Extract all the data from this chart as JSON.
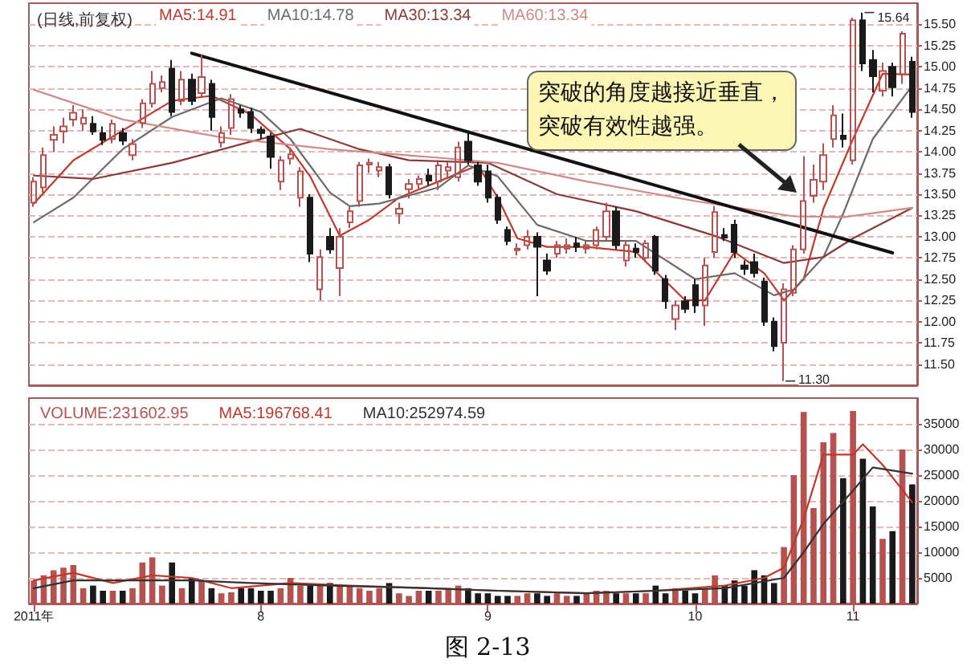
{
  "chart_data": [
    {
      "type": "candlestick",
      "title": "(日线,前复权)",
      "categories": [
        null,
        null,
        null,
        null,
        null,
        null,
        null,
        null,
        null,
        null,
        null,
        null,
        null,
        null,
        null,
        null,
        null,
        null,
        null,
        null,
        null,
        null,
        null,
        null,
        null,
        null,
        null,
        null,
        null,
        null,
        null,
        null,
        null,
        null,
        null,
        null,
        null,
        null,
        null,
        null,
        null,
        null,
        null,
        null,
        null,
        null,
        null,
        null,
        null,
        null,
        null,
        null,
        null,
        null,
        null,
        null,
        null,
        null,
        null,
        null,
        null,
        null,
        null,
        null,
        null,
        null,
        null,
        null,
        null,
        null,
        null,
        null,
        null,
        null,
        null,
        null,
        null,
        null,
        null,
        null,
        null,
        null,
        null,
        null,
        null,
        null,
        null,
        null,
        null,
        null
      ],
      "ohlc": [
        [
          13.4,
          13.7,
          13.35,
          13.65
        ],
        [
          13.58,
          14.05,
          13.52,
          13.96
        ],
        [
          14.14,
          14.3,
          14.0,
          14.2
        ],
        [
          14.24,
          14.4,
          14.1,
          14.3
        ],
        [
          14.38,
          14.55,
          14.3,
          14.46
        ],
        [
          14.33,
          14.5,
          14.25,
          14.4
        ],
        [
          14.33,
          14.42,
          14.2,
          14.24
        ],
        [
          14.22,
          14.3,
          14.08,
          14.14
        ],
        [
          14.15,
          14.38,
          14.1,
          14.33
        ],
        [
          14.22,
          14.28,
          14.08,
          14.13
        ],
        [
          13.96,
          14.15,
          13.9,
          14.09
        ],
        [
          14.34,
          14.62,
          14.28,
          14.57
        ],
        [
          14.57,
          14.95,
          14.52,
          14.8
        ],
        [
          14.75,
          14.9,
          14.7,
          14.82
        ],
        [
          14.98,
          15.08,
          14.42,
          14.47
        ],
        [
          14.6,
          14.95,
          14.55,
          14.85
        ],
        [
          14.85,
          14.92,
          14.55,
          14.6
        ],
        [
          14.69,
          15.14,
          14.65,
          14.88
        ],
        [
          14.8,
          14.85,
          14.25,
          14.41
        ],
        [
          14.11,
          14.3,
          14.05,
          14.22
        ],
        [
          14.28,
          14.68,
          14.2,
          14.62
        ],
        [
          14.5,
          14.55,
          14.4,
          14.46
        ],
        [
          14.47,
          14.52,
          14.22,
          14.28
        ],
        [
          14.26,
          14.3,
          14.15,
          14.22
        ],
        [
          14.18,
          14.22,
          13.8,
          13.94
        ],
        [
          13.65,
          13.95,
          13.55,
          13.9
        ],
        [
          13.92,
          14.05,
          13.85,
          13.97
        ],
        [
          13.46,
          13.82,
          13.35,
          13.77
        ],
        [
          13.46,
          13.5,
          12.7,
          12.8
        ],
        [
          12.38,
          12.85,
          12.25,
          12.76
        ],
        [
          13.0,
          13.1,
          12.8,
          12.85
        ],
        [
          12.63,
          13.1,
          12.3,
          13.0
        ],
        [
          13.17,
          13.35,
          13.1,
          13.3
        ],
        [
          13.42,
          13.88,
          13.35,
          13.84
        ],
        [
          13.85,
          13.92,
          13.75,
          13.87
        ],
        [
          13.78,
          13.88,
          13.7,
          13.82
        ],
        [
          13.82,
          13.86,
          13.45,
          13.5
        ],
        [
          13.27,
          13.4,
          13.15,
          13.33
        ],
        [
          13.56,
          13.68,
          13.45,
          13.62
        ],
        [
          13.62,
          13.72,
          13.55,
          13.68
        ],
        [
          13.72,
          13.8,
          13.6,
          13.66
        ],
        [
          13.65,
          13.88,
          13.55,
          13.84
        ],
        [
          13.78,
          13.88,
          13.7,
          13.82
        ],
        [
          13.7,
          14.12,
          13.65,
          14.05
        ],
        [
          14.12,
          14.25,
          13.85,
          13.9
        ],
        [
          13.84,
          13.88,
          13.6,
          13.65
        ],
        [
          13.77,
          13.85,
          13.4,
          13.46
        ],
        [
          13.46,
          13.5,
          13.15,
          13.2
        ],
        [
          13.08,
          13.12,
          12.9,
          12.95
        ],
        [
          12.84,
          12.92,
          12.78,
          12.86
        ],
        [
          12.9,
          13.08,
          12.85,
          13.0
        ],
        [
          13.0,
          13.05,
          12.3,
          12.88
        ],
        [
          12.72,
          12.8,
          12.55,
          12.6
        ],
        [
          12.8,
          12.95,
          12.75,
          12.9
        ],
        [
          12.86,
          12.98,
          12.8,
          12.9
        ],
        [
          12.92,
          13.0,
          12.82,
          12.88
        ],
        [
          12.86,
          12.95,
          12.8,
          12.9
        ],
        [
          12.9,
          13.12,
          12.85,
          13.08
        ],
        [
          13.0,
          13.4,
          12.95,
          13.3
        ],
        [
          13.3,
          13.35,
          12.85,
          12.9
        ],
        [
          12.72,
          12.95,
          12.65,
          12.9
        ],
        [
          12.86,
          12.92,
          12.75,
          12.82
        ],
        [
          12.75,
          12.96,
          12.7,
          12.92
        ],
        [
          13.0,
          13.02,
          12.55,
          12.6
        ],
        [
          12.5,
          12.55,
          12.15,
          12.24
        ],
        [
          12.03,
          12.25,
          11.9,
          12.19
        ],
        [
          12.24,
          12.3,
          12.1,
          12.15
        ],
        [
          12.43,
          12.5,
          12.1,
          12.19
        ],
        [
          12.19,
          12.75,
          11.95,
          12.66
        ],
        [
          12.82,
          13.36,
          12.75,
          13.29
        ],
        [
          13.02,
          13.1,
          12.95,
          12.99
        ],
        [
          13.14,
          13.2,
          12.75,
          12.82
        ],
        [
          12.66,
          12.72,
          12.55,
          12.62
        ],
        [
          12.7,
          12.8,
          12.52,
          12.57
        ],
        [
          12.47,
          12.52,
          11.95,
          12.0
        ],
        [
          12.0,
          12.05,
          11.65,
          11.71
        ],
        [
          11.75,
          12.45,
          11.3,
          12.38
        ],
        [
          12.34,
          12.9,
          12.3,
          12.85
        ],
        [
          12.85,
          13.95,
          12.8,
          13.42
        ],
        [
          13.48,
          13.85,
          13.4,
          13.67
        ],
        [
          13.65,
          14.1,
          13.55,
          13.96
        ],
        [
          14.15,
          14.55,
          14.05,
          14.43
        ],
        [
          14.19,
          14.45,
          14.05,
          14.15
        ],
        [
          13.9,
          15.58,
          13.85,
          15.55
        ],
        [
          15.55,
          15.64,
          14.95,
          15.04
        ],
        [
          15.08,
          15.2,
          14.7,
          14.89
        ],
        [
          14.72,
          15.05,
          14.65,
          14.95
        ],
        [
          15.0,
          15.05,
          14.65,
          14.76
        ],
        [
          14.91,
          15.42,
          14.8,
          15.39
        ],
        [
          15.06,
          15.12,
          14.4,
          14.47
        ]
      ],
      "colors": [
        "#b5514f",
        "#b5514f",
        "#b5514f",
        "#b5514f",
        "#b5514f",
        "#b5514f",
        "#1a1a1a",
        "#1a1a1a",
        "#b5514f",
        "#1a1a1a",
        "#b5514f",
        "#b5514f",
        "#b5514f",
        "#b5514f",
        "#1a1a1a",
        "#b5514f",
        "#1a1a1a",
        "#b5514f",
        "#1a1a1a",
        "#b5514f",
        "#b5514f",
        "#1a1a1a",
        "#1a1a1a",
        "#1a1a1a",
        "#1a1a1a",
        "#b5514f",
        "#b5514f",
        "#b5514f",
        "#1a1a1a",
        "#b5514f",
        "#1a1a1a",
        "#b5514f",
        "#b5514f",
        "#b5514f",
        "#b5514f",
        "#b5514f",
        "#1a1a1a",
        "#b5514f",
        "#b5514f",
        "#b5514f",
        "#1a1a1a",
        "#b5514f",
        "#b5514f",
        "#b5514f",
        "#1a1a1a",
        "#1a1a1a",
        "#1a1a1a",
        "#1a1a1a",
        "#1a1a1a",
        "#b5514f",
        "#b5514f",
        "#1a1a1a",
        "#1a1a1a",
        "#b5514f",
        "#b5514f",
        "#1a1a1a",
        "#b5514f",
        "#b5514f",
        "#b5514f",
        "#1a1a1a",
        "#b5514f",
        "#1a1a1a",
        "#b5514f",
        "#1a1a1a",
        "#1a1a1a",
        "#b5514f",
        "#1a1a1a",
        "#1a1a1a",
        "#b5514f",
        "#b5514f",
        "#1a1a1a",
        "#1a1a1a",
        "#1a1a1a",
        "#1a1a1a",
        "#1a1a1a",
        "#1a1a1a",
        "#b5514f",
        "#b5514f",
        "#b5514f",
        "#b5514f",
        "#b5514f",
        "#b5514f",
        "#1a1a1a",
        "#b5514f",
        "#1a1a1a",
        "#1a1a1a",
        "#b5514f",
        "#1a1a1a",
        "#b5514f",
        "#1a1a1a"
      ],
      "series": [
        {
          "name": "MA5:14.91",
          "type": "line",
          "color": "#c0392b",
          "values": [
            13.39,
            null,
            null,
            null,
            13.9,
            null,
            null,
            null,
            null,
            14.25,
            null,
            null,
            null,
            null,
            14.6,
            null,
            null,
            null,
            14.66,
            null,
            null,
            null,
            14.44,
            null,
            null,
            null,
            14.03,
            null,
            13.71,
            null,
            null,
            13.01,
            null,
            null,
            13.2,
            null,
            null,
            13.46,
            null,
            null,
            null,
            13.65,
            null,
            null,
            null,
            13.84,
            null,
            13.46,
            null,
            12.98,
            null,
            null,
            12.88,
            null,
            null,
            null,
            12.88,
            null,
            null,
            null,
            null,
            12.82,
            null,
            null,
            null,
            null,
            12.25,
            null,
            12.25,
            null,
            null,
            12.82,
            null,
            null,
            12.57,
            null,
            12.25,
            null,
            12.5,
            null,
            13.33,
            null,
            null,
            14.15,
            null,
            null,
            14.92,
            null,
            null,
            14.91
          ]
        },
        {
          "name": "MA10:14.78",
          "type": "line",
          "color": "#6b6b6b",
          "values": [
            13.17,
            null,
            null,
            null,
            13.46,
            null,
            null,
            null,
            null,
            14.03,
            null,
            null,
            null,
            null,
            14.41,
            null,
            null,
            null,
            null,
            14.63,
            null,
            null,
            null,
            14.47,
            null,
            null,
            14.15,
            null,
            null,
            null,
            13.52,
            null,
            13.36,
            null,
            null,
            13.39,
            null,
            null,
            null,
            null,
            null,
            13.58,
            null,
            null,
            13.84,
            null,
            null,
            13.71,
            null,
            null,
            null,
            13.14,
            null,
            null,
            null,
            null,
            12.95,
            null,
            null,
            null,
            null,
            12.95,
            null,
            null,
            null,
            null,
            null,
            12.5,
            null,
            null,
            null,
            12.57,
            null,
            null,
            null,
            12.31,
            null,
            12.38,
            null,
            null,
            12.76,
            null,
            13.27,
            null,
            null,
            14.15,
            null,
            null,
            null,
            14.78
          ]
        },
        {
          "name": "MA30:13.34",
          "type": "line",
          "color": "#8b3a3a",
          "values": [
            13.72,
            null,
            null,
            null,
            null,
            null,
            13.68,
            null,
            null,
            null,
            null,
            null,
            null,
            null,
            13.87,
            null,
            null,
            null,
            null,
            null,
            null,
            null,
            14.12,
            null,
            null,
            null,
            null,
            14.27,
            null,
            null,
            null,
            null,
            null,
            14.03,
            null,
            null,
            null,
            null,
            13.9,
            null,
            null,
            null,
            null,
            null,
            null,
            null,
            13.87,
            null,
            null,
            null,
            null,
            null,
            null,
            13.5,
            null,
            null,
            null,
            null,
            null,
            null,
            null,
            13.3,
            null,
            null,
            null,
            null,
            null,
            null,
            null,
            13.01,
            null,
            null,
            null,
            null,
            null,
            null,
            12.69,
            null,
            null,
            null,
            12.76,
            null,
            null,
            12.98,
            null,
            null,
            null,
            null,
            null,
            13.34
          ]
        },
        {
          "name": "MA60:13.34",
          "type": "line",
          "color": "#d08a8a",
          "values": [
            14.73,
            null,
            null,
            null,
            null,
            null,
            null,
            null,
            null,
            14.38,
            null,
            null,
            null,
            null,
            null,
            null,
            null,
            null,
            null,
            14.17,
            null,
            null,
            null,
            null,
            null,
            null,
            null,
            null,
            null,
            null,
            14.03,
            null,
            null,
            null,
            null,
            null,
            null,
            null,
            null,
            null,
            null,
            13.93,
            null,
            null,
            null,
            null,
            null,
            13.87,
            null,
            null,
            null,
            null,
            null,
            null,
            null,
            null,
            13.65,
            null,
            null,
            null,
            null,
            null,
            null,
            null,
            null,
            null,
            null,
            13.42,
            null,
            null,
            null,
            null,
            null,
            null,
            null,
            null,
            null,
            13.24,
            null,
            null,
            null,
            null,
            13.23,
            null,
            null,
            null,
            null,
            null,
            null,
            13.34
          ]
        },
        {
          "type": "line",
          "color": "#111111",
          "values": [
            null,
            null,
            null,
            null,
            null,
            null,
            null,
            null,
            null,
            null,
            null,
            null,
            null,
            null,
            null,
            null,
            15.16,
            null,
            null,
            null,
            null,
            null,
            null,
            null,
            null,
            null,
            null,
            null,
            null,
            null,
            null,
            null,
            null,
            null,
            null,
            null,
            null,
            null,
            null,
            null,
            null,
            null,
            null,
            null,
            null,
            null,
            null,
            null,
            null,
            null,
            null,
            null,
            null,
            null,
            null,
            null,
            null,
            null,
            null,
            null,
            null,
            null,
            null,
            null,
            null,
            null,
            null,
            null,
            null,
            null,
            null,
            null,
            null,
            null,
            null,
            null,
            null,
            null,
            null,
            null,
            null,
            null,
            null,
            null,
            null,
            null,
            null,
            12.81,
            null,
            null
          ]
        }
      ],
      "ylim": [
        11.25,
        15.75
      ],
      "yticks": [
        {
          "value": 11.5,
          "label": "11.50"
        },
        {
          "value": 11.75,
          "label": "11.75"
        },
        {
          "value": 12,
          "label": "12.00"
        },
        {
          "value": 12.25,
          "label": "12.25"
        },
        {
          "value": 12.5,
          "label": "12.50"
        },
        {
          "value": 12.75,
          "label": "12.75"
        },
        {
          "value": 13,
          "label": "13.00"
        },
        {
          "value": 13.25,
          "label": "13.25"
        },
        {
          "value": 13.5,
          "label": "13.50"
        },
        {
          "value": 13.75,
          "label": "13.75"
        },
        {
          "value": 14,
          "label": "14.00"
        },
        {
          "value": 14.25,
          "label": "14.25"
        },
        {
          "value": 14.5,
          "label": "14.50"
        },
        {
          "value": 14.75,
          "label": "14.75"
        },
        {
          "value": 15,
          "label": "15.00"
        },
        {
          "value": 15.25,
          "label": "15.25"
        },
        {
          "value": 15.5,
          "label": "15.50"
        }
      ],
      "grid": "y",
      "legend": "top left",
      "tick_labels": "y",
      "marker": "none",
      "annotations": [
        "突破的角度越接近垂直，突破有效性越强。",
        "15.64",
        "11.30"
      ]
    },
    {
      "type": "bar",
      "categories": [
        "2011年",
        null,
        null,
        null,
        null,
        null,
        null,
        null,
        null,
        null,
        null,
        null,
        null,
        null,
        null,
        null,
        null,
        null,
        null,
        null,
        null,
        null,
        null,
        "8",
        null,
        null,
        null,
        null,
        null,
        null,
        null,
        null,
        null,
        null,
        null,
        null,
        null,
        null,
        null,
        null,
        null,
        null,
        null,
        null,
        null,
        null,
        "9",
        null,
        null,
        null,
        null,
        null,
        null,
        null,
        null,
        null,
        null,
        null,
        null,
        null,
        null,
        null,
        null,
        null,
        null,
        null,
        null,
        "10",
        null,
        null,
        null,
        null,
        null,
        null,
        null,
        null,
        null,
        null,
        null,
        null,
        null,
        null,
        null,
        "11",
        null,
        null,
        null,
        null,
        null,
        null
      ],
      "series": [
        {
          "name": "VOLUME:231602.95",
          "type": "bar",
          "color": "#b5514f",
          "colors": [
            "#b5514f",
            "#b5514f",
            "#b5514f",
            "#b5514f",
            "#b5514f",
            "#b5514f",
            "#1a1a1a",
            "#1a1a1a",
            "#b5514f",
            "#1a1a1a",
            "#b5514f",
            "#b5514f",
            "#b5514f",
            "#b5514f",
            "#1a1a1a",
            "#b5514f",
            "#1a1a1a",
            "#b5514f",
            "#1a1a1a",
            "#b5514f",
            "#b5514f",
            "#1a1a1a",
            "#1a1a1a",
            "#1a1a1a",
            "#1a1a1a",
            "#b5514f",
            "#b5514f",
            "#b5514f",
            "#1a1a1a",
            "#b5514f",
            "#1a1a1a",
            "#b5514f",
            "#b5514f",
            "#b5514f",
            "#b5514f",
            "#b5514f",
            "#1a1a1a",
            "#b5514f",
            "#b5514f",
            "#b5514f",
            "#1a1a1a",
            "#b5514f",
            "#b5514f",
            "#b5514f",
            "#1a1a1a",
            "#1a1a1a",
            "#1a1a1a",
            "#1a1a1a",
            "#1a1a1a",
            "#b5514f",
            "#b5514f",
            "#1a1a1a",
            "#1a1a1a",
            "#b5514f",
            "#b5514f",
            "#1a1a1a",
            "#b5514f",
            "#b5514f",
            "#b5514f",
            "#1a1a1a",
            "#b5514f",
            "#1a1a1a",
            "#b5514f",
            "#1a1a1a",
            "#1a1a1a",
            "#b5514f",
            "#1a1a1a",
            "#1a1a1a",
            "#b5514f",
            "#b5514f",
            "#1a1a1a",
            "#1a1a1a",
            "#1a1a1a",
            "#1a1a1a",
            "#1a1a1a",
            "#1a1a1a",
            "#b5514f",
            "#b5514f",
            "#b5514f",
            "#b5514f",
            "#b5514f",
            "#b5514f",
            "#1a1a1a",
            "#b5514f",
            "#1a1a1a",
            "#1a1a1a",
            "#b5514f",
            "#1a1a1a",
            "#b5514f",
            "#1a1a1a"
          ],
          "values": [
            4500,
            5500,
            6500,
            7000,
            7500,
            3000,
            3500,
            2500,
            2500,
            2500,
            3000,
            8000,
            9000,
            3500,
            8000,
            3000,
            5000,
            4500,
            3000,
            2000,
            2200,
            3000,
            3000,
            2500,
            2500,
            3000,
            5000,
            3500,
            3500,
            3500,
            4000,
            3500,
            3500,
            3000,
            2500,
            3000,
            4000,
            2000,
            1500,
            2500,
            2500,
            2500,
            3000,
            3500,
            3000,
            2000,
            2000,
            1500,
            1500,
            1500,
            2000,
            2000,
            1500,
            2000,
            1500,
            1500,
            2000,
            2500,
            2500,
            2000,
            2000,
            2000,
            2000,
            3500,
            2000,
            3000,
            2500,
            2000,
            3000,
            5500,
            3500,
            4500,
            3500,
            6500,
            5500,
            4000,
            11000,
            25000,
            37300,
            18600,
            31400,
            33200,
            24400,
            37500,
            28200,
            18900,
            12600,
            14100,
            30000,
            23200
          ]
        },
        {
          "name": "MA5:196768.41",
          "type": "line",
          "color": "#c0392b",
          "values": [
            4500,
            null,
            null,
            null,
            6000,
            null,
            null,
            null,
            4000,
            null,
            null,
            null,
            5500,
            null,
            null,
            null,
            5000,
            null,
            null,
            null,
            3000,
            null,
            null,
            null,
            null,
            null,
            4000,
            null,
            null,
            null,
            null,
            null,
            3500,
            null,
            null,
            null,
            null,
            null,
            null,
            null,
            3000,
            null,
            null,
            null,
            null,
            null,
            null,
            2500,
            null,
            null,
            null,
            null,
            null,
            null,
            null,
            null,
            2000,
            null,
            null,
            null,
            null,
            null,
            null,
            2500,
            null,
            null,
            null,
            null,
            null,
            null,
            3500,
            null,
            null,
            null,
            5000,
            null,
            7000,
            null,
            16500,
            null,
            29000,
            null,
            null,
            29000,
            31000,
            null,
            27000,
            null,
            null,
            19700
          ]
        },
        {
          "name": "MA10:252974.59",
          "type": "line",
          "color": "#333333",
          "values": [
            3000,
            null,
            null,
            null,
            4500,
            null,
            null,
            null,
            null,
            null,
            4500,
            null,
            null,
            null,
            null,
            null,
            4500,
            null,
            null,
            null,
            null,
            null,
            4000,
            null,
            null,
            null,
            null,
            null,
            null,
            null,
            3500,
            null,
            null,
            null,
            null,
            null,
            null,
            null,
            null,
            null,
            3000,
            null,
            null,
            null,
            null,
            null,
            null,
            2500,
            null,
            null,
            null,
            null,
            null,
            null,
            null,
            null,
            2000,
            null,
            null,
            null,
            null,
            null,
            null,
            2500,
            null,
            null,
            null,
            null,
            null,
            null,
            3000,
            null,
            null,
            null,
            null,
            null,
            5000,
            null,
            10000,
            null,
            15500,
            null,
            null,
            22000,
            null,
            26500,
            null,
            null,
            null,
            25300
          ]
        }
      ],
      "ylim": [
        0,
        40000
      ],
      "yticks": [
        5000,
        10000,
        15000,
        20000,
        25000,
        30000,
        35000
      ],
      "grid": "y",
      "legend": "top left",
      "marker": "none",
      "annotations": [
        "图 2-13"
      ]
    }
  ]
}
